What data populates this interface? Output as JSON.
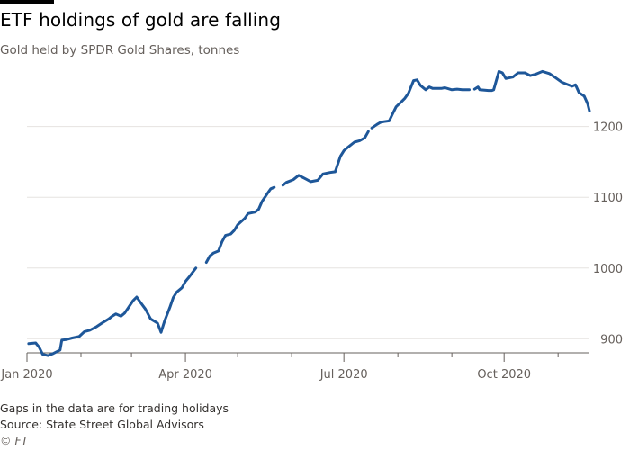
{
  "header": {
    "title": "ETF holdings of gold are falling",
    "subtitle": "Gold held by SPDR Gold Shares, tonnes"
  },
  "footer": {
    "note": "Gaps in the data are for trading holidays",
    "source": "Source: State Street Global Advisors",
    "credit": "© FT"
  },
  "colors": {
    "line": "#1e5799",
    "grid": "#e6e3e0",
    "axis": "#66605c"
  },
  "chart_data": {
    "type": "line",
    "title": "ETF holdings of gold are falling",
    "subtitle": "Gold held by SPDR Gold Shares, tonnes",
    "x_axis": {
      "type": "date",
      "range": [
        "2020-01-01",
        "2020-11-19"
      ],
      "tick_labels": [
        {
          "date": "2020-01-01",
          "label": "Jan 2020"
        },
        {
          "date": "2020-04-01",
          "label": "Apr 2020"
        },
        {
          "date": "2020-07-01",
          "label": "Jul 2020"
        },
        {
          "date": "2020-10-01",
          "label": "Oct 2020"
        }
      ],
      "minor_ticks": [
        "2020-02-01",
        "2020-03-01",
        "2020-05-01",
        "2020-06-01",
        "2020-08-01",
        "2020-09-01",
        "2020-11-01"
      ]
    },
    "y_axis": {
      "range": [
        880,
        1290
      ],
      "ticks": [
        900,
        1000,
        1100,
        1200
      ],
      "position": "right",
      "grid": true
    },
    "series": [
      {
        "segments": [
          [
            [
              "2020-01-02",
              893
            ],
            [
              "2020-01-06",
              894
            ],
            [
              "2020-01-08",
              888
            ],
            [
              "2020-01-10",
              878
            ],
            [
              "2020-01-13",
              876
            ],
            [
              "2020-01-16",
              879
            ],
            [
              "2020-01-20",
              884
            ],
            [
              "2020-01-21",
              898
            ],
            [
              "2020-01-24",
              899
            ],
            [
              "2020-01-27",
              901
            ],
            [
              "2020-01-31",
              903
            ],
            [
              "2020-02-03",
              910
            ],
            [
              "2020-02-06",
              912
            ],
            [
              "2020-02-10",
              917
            ],
            [
              "2020-02-13",
              922
            ],
            [
              "2020-02-17",
              928
            ],
            [
              "2020-02-19",
              932
            ],
            [
              "2020-02-21",
              935
            ],
            [
              "2020-02-24",
              932
            ],
            [
              "2020-02-26",
              936
            ],
            [
              "2020-02-28",
              943
            ],
            [
              "2020-03-02",
              954
            ],
            [
              "2020-03-04",
              959
            ],
            [
              "2020-03-06",
              952
            ],
            [
              "2020-03-09",
              942
            ],
            [
              "2020-03-12",
              928
            ],
            [
              "2020-03-16",
              922
            ],
            [
              "2020-03-18",
              909
            ],
            [
              "2020-03-20",
              925
            ],
            [
              "2020-03-23",
              944
            ],
            [
              "2020-03-25",
              958
            ],
            [
              "2020-03-27",
              966
            ],
            [
              "2020-03-30",
              972
            ],
            [
              "2020-04-01",
              981
            ],
            [
              "2020-04-03",
              987
            ],
            [
              "2020-04-07",
              1000
            ]
          ],
          [
            [
              "2020-04-13",
              1008
            ],
            [
              "2020-04-15",
              1017
            ],
            [
              "2020-04-17",
              1021
            ],
            [
              "2020-04-20",
              1024
            ],
            [
              "2020-04-22",
              1037
            ],
            [
              "2020-04-24",
              1046
            ],
            [
              "2020-04-27",
              1048
            ],
            [
              "2020-04-29",
              1053
            ],
            [
              "2020-05-01",
              1061
            ],
            [
              "2020-05-05",
              1070
            ],
            [
              "2020-05-07",
              1077
            ],
            [
              "2020-05-11",
              1079
            ],
            [
              "2020-05-13",
              1083
            ],
            [
              "2020-05-15",
              1094
            ],
            [
              "2020-05-18",
              1105
            ],
            [
              "2020-05-20",
              1112
            ],
            [
              "2020-05-22",
              1114
            ]
          ],
          [
            [
              "2020-05-27",
              1117
            ],
            [
              "2020-05-29",
              1121
            ],
            [
              "2020-06-02",
              1125
            ],
            [
              "2020-06-05",
              1131
            ],
            [
              "2020-06-09",
              1126
            ],
            [
              "2020-06-12",
              1122
            ],
            [
              "2020-06-16",
              1124
            ],
            [
              "2020-06-19",
              1133
            ],
            [
              "2020-06-23",
              1135
            ],
            [
              "2020-06-26",
              1136
            ],
            [
              "2020-06-29",
              1158
            ],
            [
              "2020-07-01",
              1166
            ],
            [
              "2020-07-03",
              1170
            ],
            [
              "2020-07-07",
              1178
            ],
            [
              "2020-07-10",
              1180
            ],
            [
              "2020-07-13",
              1184
            ],
            [
              "2020-07-15",
              1193
            ]
          ],
          [
            [
              "2020-07-17",
              1198
            ],
            [
              "2020-07-20",
              1203
            ],
            [
              "2020-07-22",
              1206
            ],
            [
              "2020-07-24",
              1207
            ],
            [
              "2020-07-27",
              1208
            ],
            [
              "2020-07-29",
              1218
            ],
            [
              "2020-07-31",
              1228
            ],
            [
              "2020-08-03",
              1235
            ],
            [
              "2020-08-05",
              1240
            ],
            [
              "2020-08-07",
              1247
            ],
            [
              "2020-08-10",
              1265
            ],
            [
              "2020-08-12",
              1266
            ],
            [
              "2020-08-14",
              1258
            ],
            [
              "2020-08-17",
              1252
            ],
            [
              "2020-08-19",
              1256
            ],
            [
              "2020-08-21",
              1254
            ],
            [
              "2020-08-26",
              1254
            ],
            [
              "2020-08-28",
              1255
            ],
            [
              "2020-09-01",
              1252
            ],
            [
              "2020-09-04",
              1253
            ],
            [
              "2020-09-07",
              1252
            ],
            [
              "2020-09-11",
              1252
            ]
          ],
          [
            [
              "2020-09-14",
              1253
            ],
            [
              "2020-09-16",
              1256
            ],
            [
              "2020-09-17",
              1252
            ],
            [
              "2020-09-22",
              1251
            ],
            [
              "2020-09-24",
              1251
            ],
            [
              "2020-09-25",
              1252
            ],
            [
              "2020-09-28",
              1278
            ],
            [
              "2020-09-30",
              1276
            ],
            [
              "2020-10-02",
              1268
            ],
            [
              "2020-10-06",
              1270
            ],
            [
              "2020-10-09",
              1276
            ],
            [
              "2020-10-13",
              1276
            ],
            [
              "2020-10-16",
              1272
            ],
            [
              "2020-10-19",
              1274
            ],
            [
              "2020-10-23",
              1278
            ],
            [
              "2020-10-27",
              1275
            ],
            [
              "2020-10-30",
              1270
            ],
            [
              "2020-11-03",
              1263
            ],
            [
              "2020-11-06",
              1260
            ],
            [
              "2020-11-09",
              1257
            ],
            [
              "2020-11-11",
              1259
            ],
            [
              "2020-11-13",
              1248
            ],
            [
              "2020-11-16",
              1243
            ],
            [
              "2020-11-18",
              1232
            ],
            [
              "2020-11-19",
              1222
            ]
          ]
        ]
      }
    ]
  }
}
